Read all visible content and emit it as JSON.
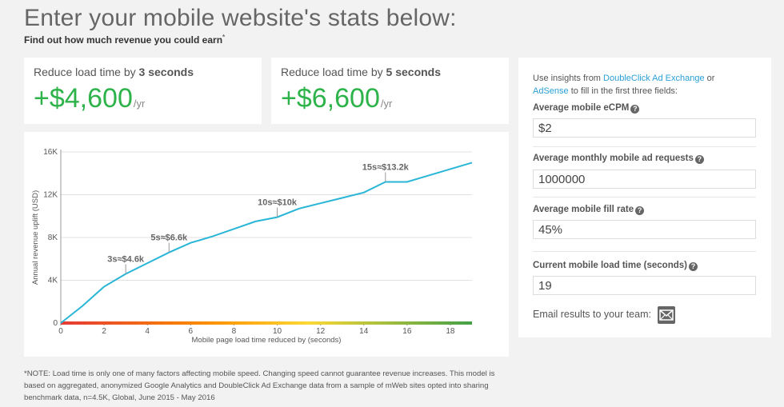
{
  "header": {
    "title": "Enter your mobile website's stats below:",
    "subtitle": "Find out how much revenue you could earn",
    "subtitle_mark": "*"
  },
  "stats": [
    {
      "label_prefix": "Reduce load time by ",
      "label_bold": "3 seconds",
      "value": "+$4,600",
      "unit": "/yr"
    },
    {
      "label_prefix": "Reduce load time by ",
      "label_bold": "5 seconds",
      "value": "+$6,600",
      "unit": "/yr"
    }
  ],
  "side": {
    "intro_prefix": "Use insights from ",
    "link_adx": "DoubleClick Ad Exchange",
    "intro_or": " or",
    "link_adsense": "AdSense",
    "intro_suffix": " to fill in the first three fields:",
    "fields": [
      {
        "label": "Average mobile eCPM",
        "value": "$2"
      },
      {
        "label": "Average monthly mobile ad requests",
        "value": "1000000"
      },
      {
        "label": "Average mobile fill rate",
        "value": "45%"
      },
      {
        "label": "Current mobile load time (seconds)",
        "value": "19"
      }
    ],
    "help_glyph": "?",
    "email_label": "Email results to your team:",
    "email_icon": "envelope-icon"
  },
  "chart_data": {
    "type": "line",
    "xlabel": "Mobile page load time reduced by (seconds)",
    "ylabel": "Annual revenue uplift (USD)",
    "xlim": [
      0,
      19
    ],
    "ylim": [
      0,
      16000
    ],
    "x_ticks": [
      "0",
      "2",
      "4",
      "6",
      "8",
      "10",
      "12",
      "14",
      "16",
      "18"
    ],
    "y_ticks": [
      "0",
      "4K",
      "8K",
      "12K",
      "16K"
    ],
    "x": [
      0,
      1,
      2,
      3,
      4,
      5,
      6,
      7,
      8,
      9,
      10,
      11,
      12,
      13,
      14,
      15,
      16,
      17,
      18,
      19
    ],
    "values": [
      0,
      1600,
      3400,
      4600,
      5600,
      6600,
      7500,
      8100,
      8800,
      9500,
      9900,
      10700,
      11200,
      11700,
      12200,
      13200,
      13200,
      13800,
      14400,
      15000
    ],
    "line_color": "#29b6d6",
    "annotations": [
      {
        "x": 3,
        "y": 4600,
        "label": "3s≈$4.6k"
      },
      {
        "x": 5,
        "y": 6600,
        "label": "5s≈$6.6k"
      },
      {
        "x": 10,
        "y": 9900,
        "label": "10s≈$10k"
      },
      {
        "x": 15,
        "y": 13200,
        "label": "15s≈$13.2k"
      }
    ],
    "gridlines": true
  },
  "footnote": "*NOTE: Load time is only one of many factors affecting mobile speed. Changing speed cannot guarantee revenue increases. This model is based on aggregated, anonymized Google Analytics and DoubleClick Ad Exchange data from a sample of mWeb sites opted into sharing benchmark data, n=4.5K, Global, June 2015 - May 2016"
}
